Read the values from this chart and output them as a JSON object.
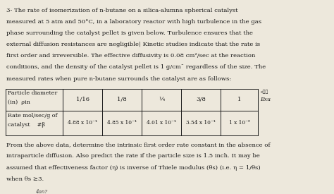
{
  "paragraph1": [
    "3- The rate of isomerization of n-butane on a silica-alumna spherical catalyst",
    "measured at 5 atm and 50°C, in a laboratory reactor with high turbulence in the gas",
    "phase surrounding the catalyst pellet is given below. Turbulence ensures that the",
    "external diffusion resistances are negligible| Kinetic studies indicate that the rate is",
    "first order and irreversible. The effective diffusivity is 0.08 cm²/sec at the reaction",
    "conditions, and the density of the catalyst pellet is 1 g/cm¯ regardless of the size. The",
    "measured rates when pure n-butane surrounds the catalyst are as follows:"
  ],
  "header_col0_line1": "Particle diameter",
  "header_col0_line2": "(in)  ρin",
  "header_vals": [
    "1/16",
    "1/8",
    "¼",
    "3/8",
    "1"
  ],
  "rate_label_line1": "Rate mol/sec/g of",
  "rate_label_line2": "catalyst    #β",
  "rate_vals": [
    "4.88 x 10⁻⁴",
    "4.85 x 10⁻⁴",
    "4.01 x 10⁻⁴",
    "3.54 x 10⁻⁴",
    "1 x 10⁻⁵"
  ],
  "annotation_topright": "c⋯⋯",
  "annotation_exu": "Exu",
  "paragraph2": [
    "From the above data, determine the intrinsic first order rate constant in the absence of",
    "intraparticle diffusion. Also predict the rate if the particle size is 1.5 inch. It may be",
    "assumed that effectiveness factor (η) is inverse of Thiele modulus (θs) (i.e. η = 1/θs)",
    "when θs ≥3."
  ],
  "annotation_bottom": "4on?",
  "bg_color": "#ede8dc",
  "text_color": "#1a1a1a",
  "font_size": 6.1,
  "table_font_size": 5.8
}
